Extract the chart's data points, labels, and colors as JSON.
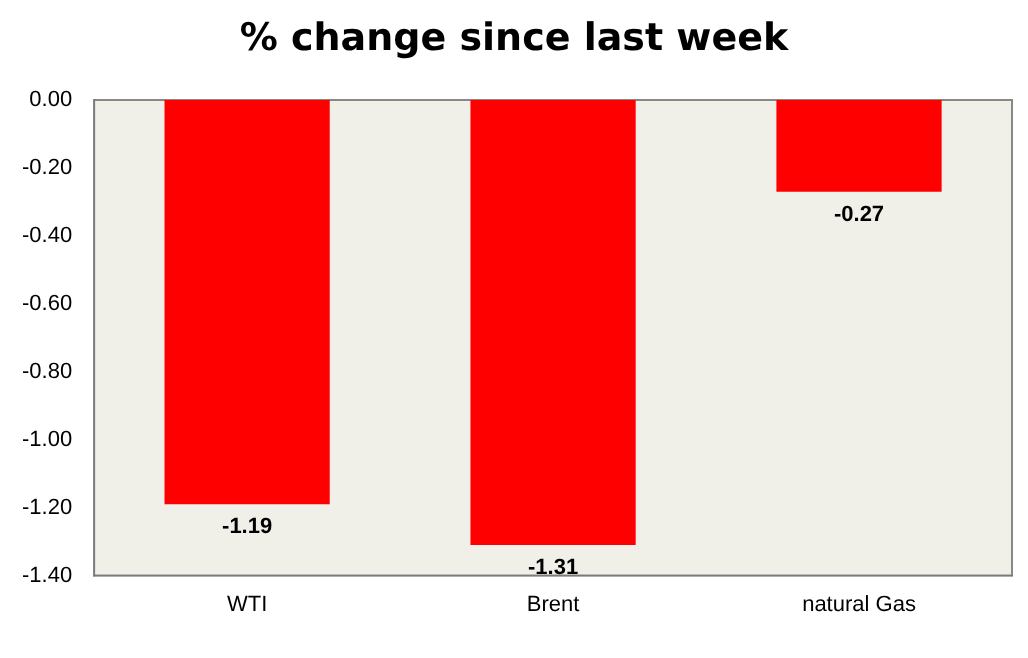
{
  "chart_data": {
    "type": "bar",
    "title": "% change since last week",
    "categories": [
      "WTI",
      "Brent",
      "natural Gas"
    ],
    "values": [
      -1.19,
      -1.31,
      -0.27
    ],
    "color": "#ff0000",
    "ylim": [
      -1.4,
      0
    ],
    "yticks": [
      {
        "value": 0,
        "label": "0.00"
      },
      {
        "value": -0.2,
        "label": "-0.20"
      },
      {
        "value": -0.4,
        "label": "-0.40"
      },
      {
        "value": -0.6,
        "label": "-0.60"
      },
      {
        "value": -0.8,
        "label": "-0.80"
      },
      {
        "value": -1,
        "label": "-1.00"
      },
      {
        "value": -1.2,
        "label": "-1.20"
      },
      {
        "value": -1.4,
        "label": "-1.40"
      }
    ],
    "grid": false,
    "legend": false,
    "data_labels": true
  }
}
